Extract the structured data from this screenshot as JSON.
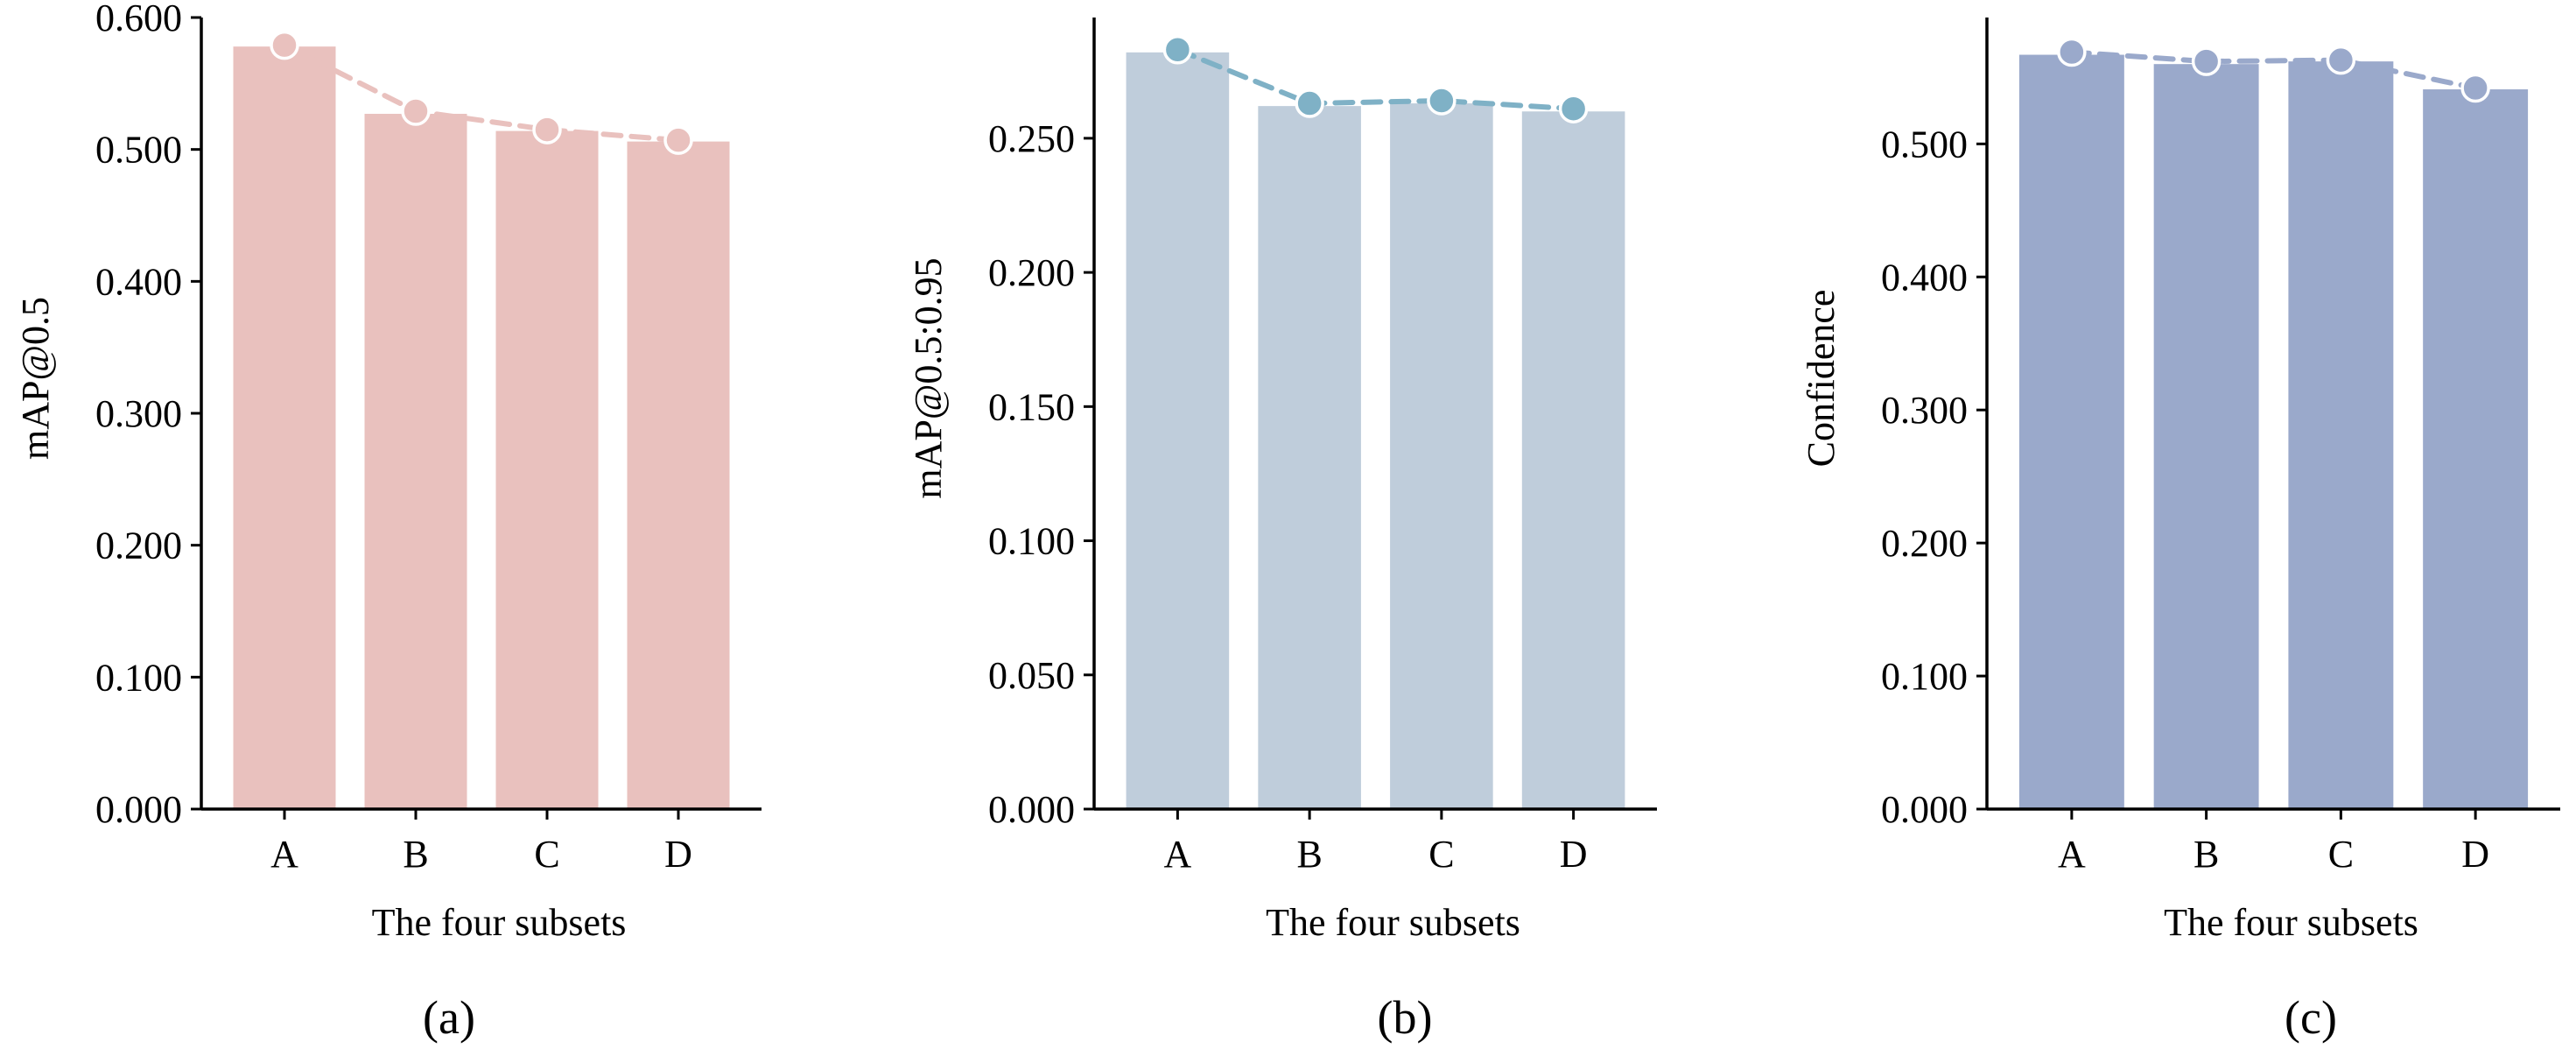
{
  "chart_data": [
    {
      "type": "bar",
      "caption": "(a)",
      "categories": [
        "A",
        "B",
        "C",
        "D"
      ],
      "values": [
        0.578,
        0.527,
        0.514,
        0.506
      ],
      "line_values": [
        0.579,
        0.529,
        0.515,
        0.507
      ],
      "xlabel": "The four subsets",
      "ylabel": "mAP@0.5",
      "ylim": [
        0,
        0.6
      ],
      "yticks": [
        0.0,
        0.1,
        0.2,
        0.3,
        0.4,
        0.5,
        0.6
      ],
      "ytick_labels": [
        "0.000",
        "0.100",
        "0.200",
        "0.300",
        "0.400",
        "0.500",
        "0.600"
      ],
      "bar_color": "#e9c1be",
      "line_color": "#e9c1be",
      "grid": false
    },
    {
      "type": "bar",
      "caption": "(b)",
      "categories": [
        "A",
        "B",
        "C",
        "D"
      ],
      "values": [
        0.282,
        0.262,
        0.263,
        0.26
      ],
      "line_values": [
        0.283,
        0.263,
        0.264,
        0.261
      ],
      "xlabel": "The four subsets",
      "ylabel": "mAP@0.5:0.95",
      "ylim": [
        0,
        0.295
      ],
      "yticks": [
        0.0,
        0.05,
        0.1,
        0.15,
        0.2,
        0.25
      ],
      "ytick_labels": [
        "0.000",
        "0.050",
        "0.100",
        "0.150",
        "0.200",
        "0.250"
      ],
      "bar_color": "#bfcddb",
      "line_color": "#7fb1c6",
      "grid": false
    },
    {
      "type": "bar",
      "caption": "(c)",
      "categories": [
        "A",
        "B",
        "C",
        "D"
      ],
      "values": [
        0.567,
        0.56,
        0.562,
        0.541
      ],
      "line_values": [
        0.569,
        0.562,
        0.563,
        0.542
      ],
      "xlabel": "The four subsets",
      "ylabel": "Confidence",
      "ylim": [
        0,
        0.595
      ],
      "yticks": [
        0.0,
        0.1,
        0.2,
        0.3,
        0.4,
        0.5
      ],
      "ytick_labels": [
        "0.000",
        "0.100",
        "0.200",
        "0.300",
        "0.400",
        "0.500"
      ],
      "bar_color": "#9aa9cb",
      "line_color": "#9aa9cb",
      "grid": false
    }
  ]
}
